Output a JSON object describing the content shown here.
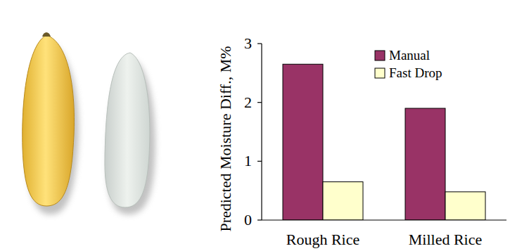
{
  "chart_data": {
    "type": "bar",
    "y_label": "Predicted Moisture Diff., M%",
    "categories": [
      "Rough Rice",
      "Milled Rice"
    ],
    "series": [
      {
        "name": "Manual",
        "color": "#993366",
        "values": [
          2.65,
          1.9
        ]
      },
      {
        "name": "Fast Drop",
        "color": "#ffffcc",
        "values": [
          0.65,
          0.48
        ]
      }
    ],
    "ylim": [
      0,
      3
    ],
    "yticks": [
      0,
      1,
      2,
      3
    ],
    "grid": false,
    "legend": "top-right"
  }
}
